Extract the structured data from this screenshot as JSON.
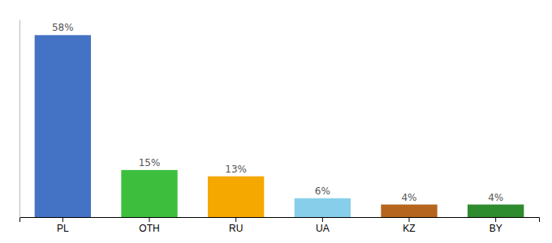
{
  "chart_data": {
    "type": "bar",
    "categories": [
      "PL",
      "OTH",
      "RU",
      "UA",
      "KZ",
      "BY"
    ],
    "values": [
      58,
      15,
      13,
      6,
      4,
      4
    ],
    "value_labels": [
      "58%",
      "15%",
      "13%",
      "6%",
      "4%",
      "4%"
    ],
    "colors": [
      "#4472c4",
      "#3dbf3d",
      "#f5a800",
      "#87ceeb",
      "#b5651d",
      "#2e8b2e"
    ],
    "ylim": [
      0,
      63
    ],
    "data_labels": true,
    "tick_labels": "x",
    "grid": false
  }
}
